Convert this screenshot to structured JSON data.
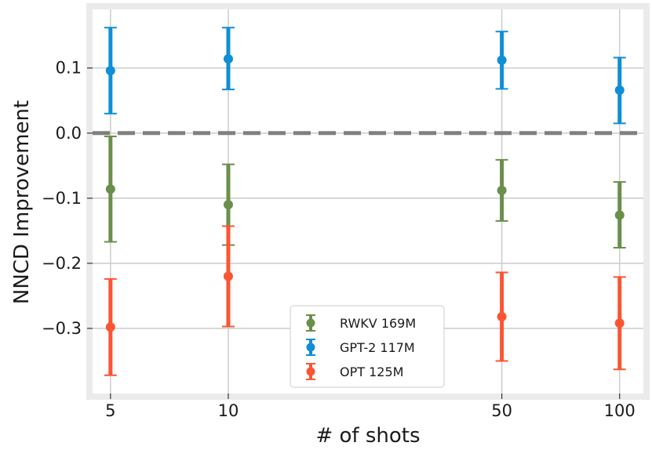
{
  "chart_data": {
    "type": "scatter",
    "title": "",
    "xlabel": "# of shots",
    "ylabel": "NNCD Improvement",
    "x": [
      5,
      10,
      50,
      100
    ],
    "x_tick_labels": [
      "5",
      "10",
      "50",
      "100"
    ],
    "x_scale": "log",
    "xlim": [
      4.5,
      115
    ],
    "ylim": [
      -0.4,
      0.19
    ],
    "y_ticks": [
      0.1,
      0.0,
      -0.1,
      -0.2,
      -0.3
    ],
    "y_tick_labels": [
      "0.1",
      "0.0",
      "−0.1",
      "−0.2",
      "−0.3"
    ],
    "grid": true,
    "reference_line": {
      "y": 0.0,
      "style": "dashed",
      "color": "#808080"
    },
    "legend_position": "bottom-center",
    "series": [
      {
        "name": "RWKV 169M",
        "color": "#6a8f4b",
        "values": [
          -0.086,
          -0.11,
          -0.088,
          -0.126
        ],
        "lower": [
          -0.167,
          -0.172,
          -0.135,
          -0.176
        ],
        "upper": [
          -0.005,
          -0.048,
          -0.041,
          -0.075
        ]
      },
      {
        "name": "GPT-2 117M",
        "color": "#0f8fd6",
        "values": [
          0.096,
          0.114,
          0.112,
          0.066
        ],
        "lower": [
          0.03,
          0.067,
          0.068,
          0.015
        ],
        "upper": [
          0.162,
          0.162,
          0.156,
          0.116
        ]
      },
      {
        "name": "OPT 125M",
        "color": "#fc5533",
        "values": [
          -0.298,
          -0.22,
          -0.282,
          -0.292
        ],
        "lower": [
          -0.372,
          -0.297,
          -0.35,
          -0.363
        ],
        "upper": [
          -0.224,
          -0.143,
          -0.214,
          -0.221
        ]
      }
    ]
  }
}
